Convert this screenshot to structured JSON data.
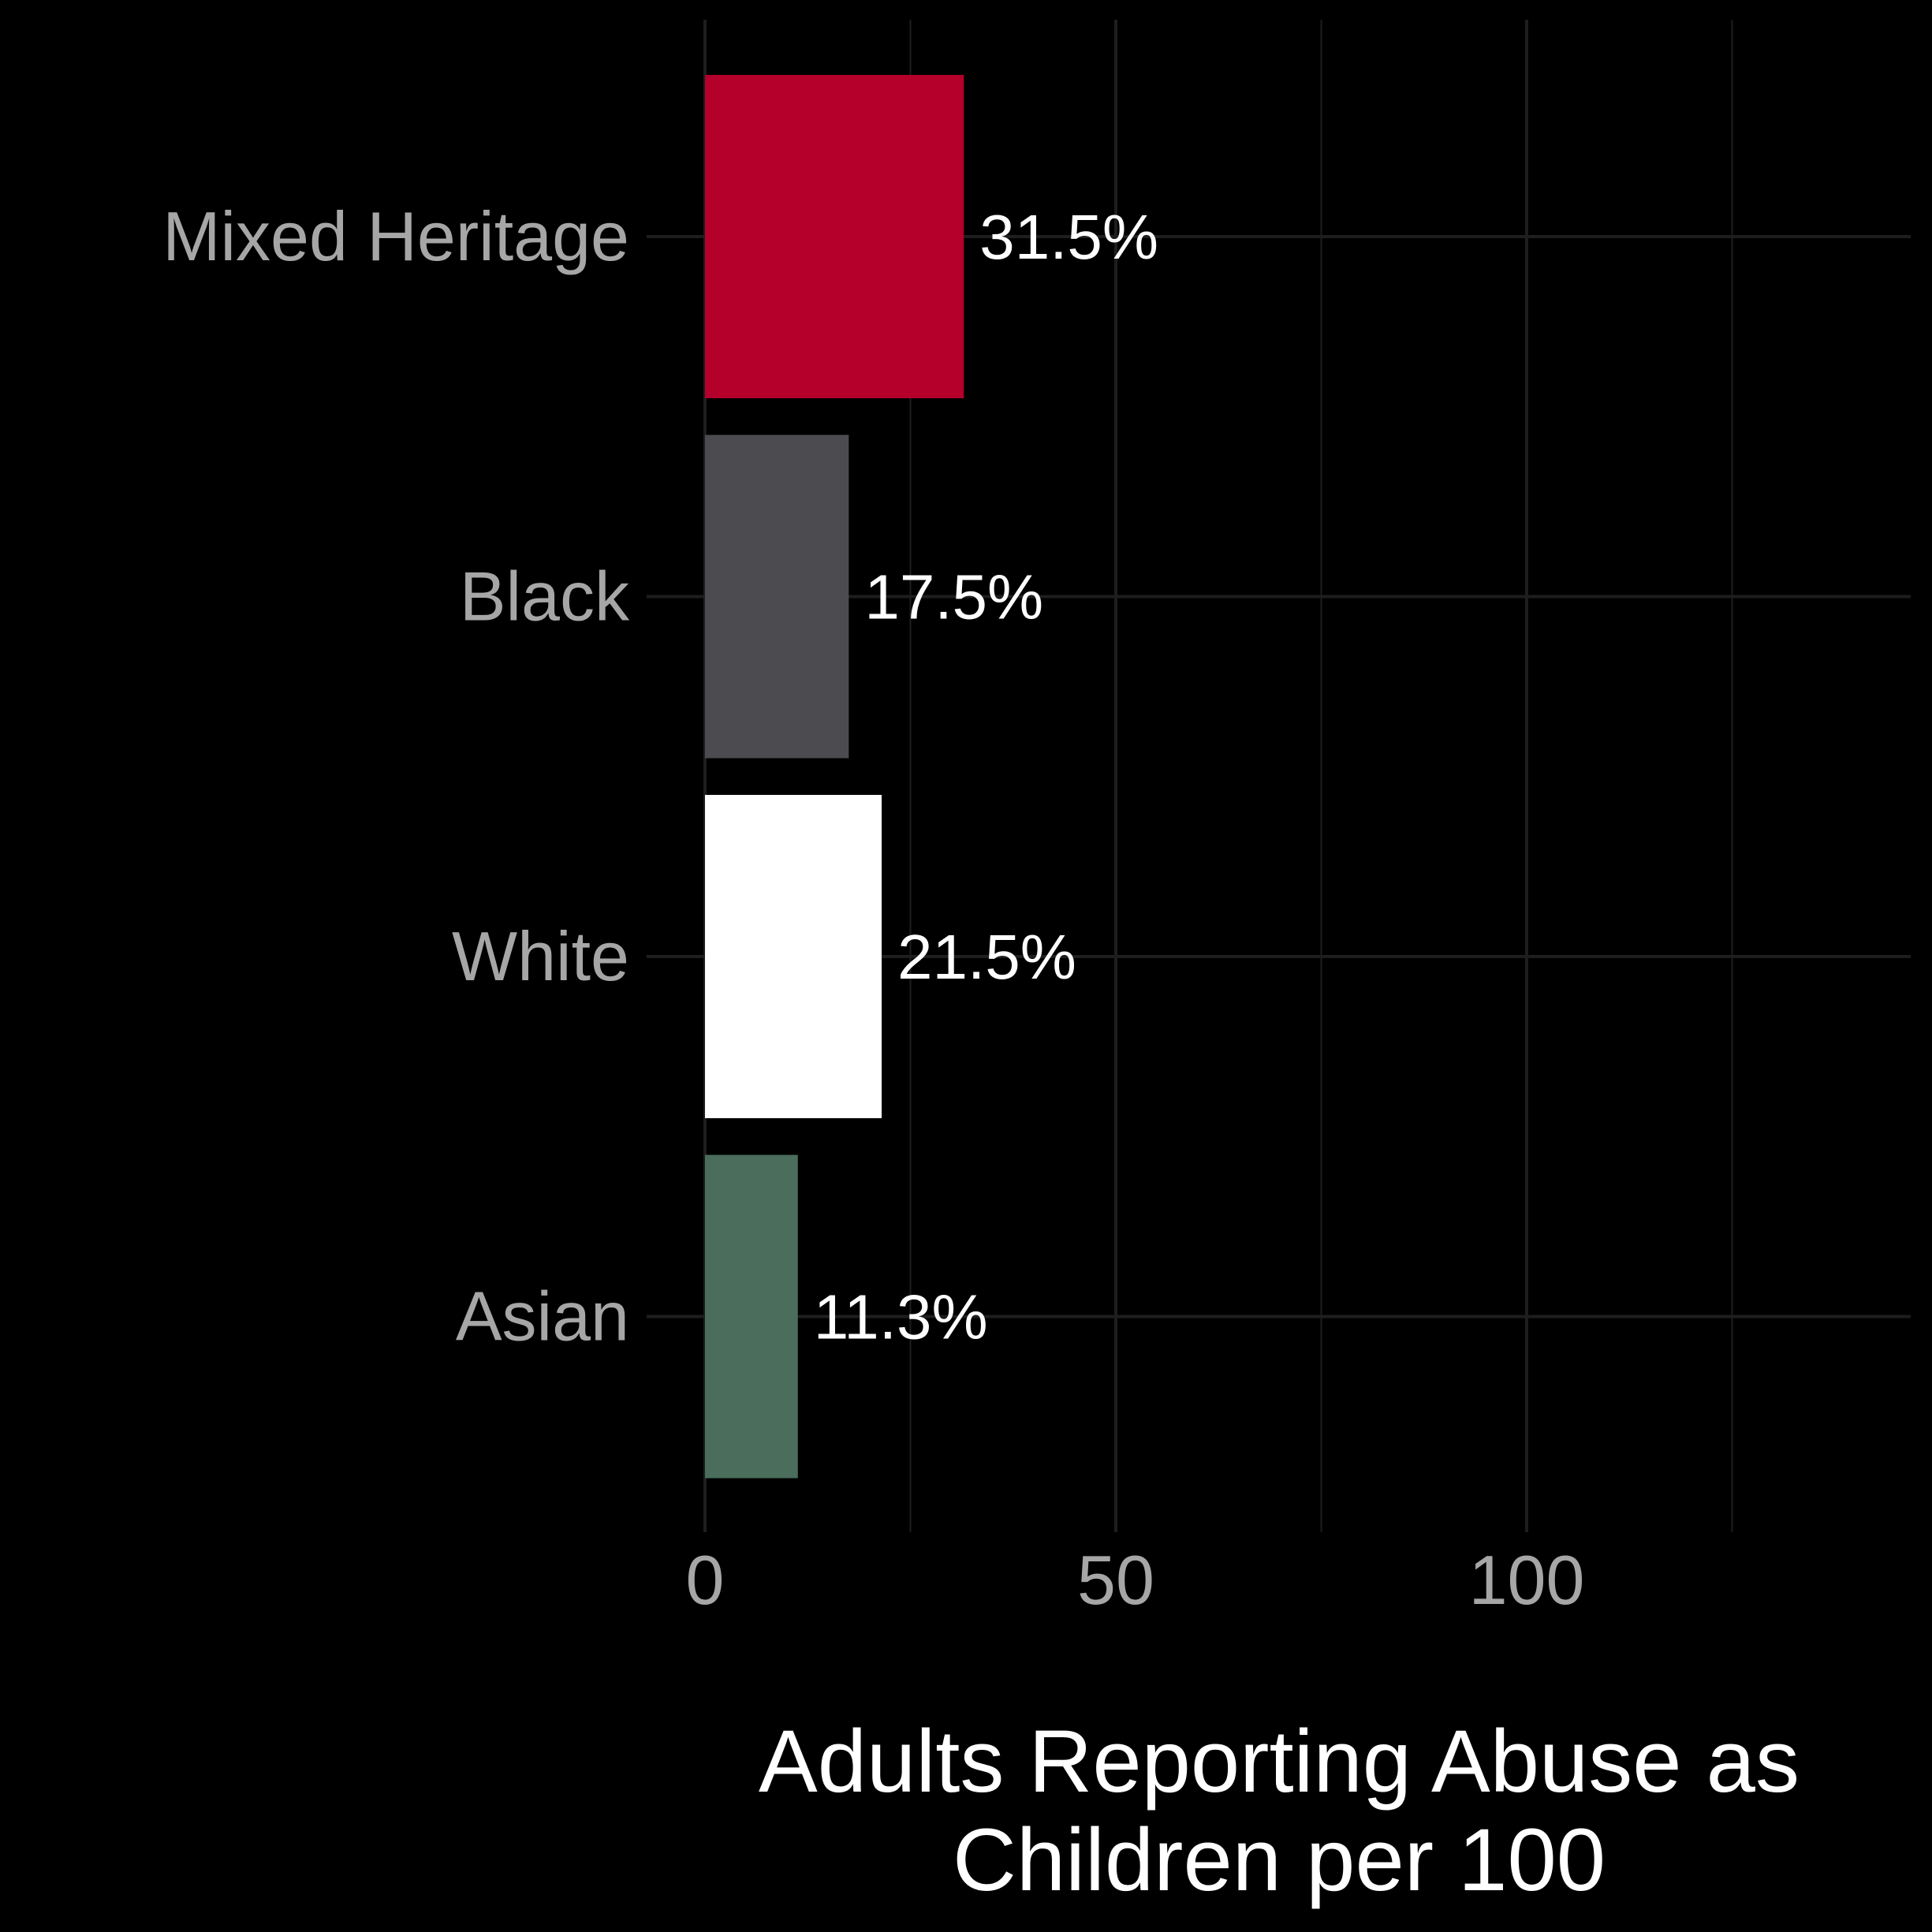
{
  "chart_data": {
    "type": "bar",
    "orientation": "horizontal",
    "categories": [
      "Mixed Heritage",
      "Black",
      "White",
      "Asian"
    ],
    "values": [
      31.5,
      17.5,
      21.5,
      11.3
    ],
    "value_labels": [
      "31.5%",
      "17.5%",
      "21.5%",
      "11.3%"
    ],
    "colors": [
      "#b5002c",
      "#4c4b50",
      "#ffffff",
      "#4a6d5c"
    ],
    "xlabel_lines": [
      "Adults Reporting Abuse as",
      "Children per 100"
    ],
    "xticks": [
      0,
      50,
      100
    ],
    "xtick_labels": [
      "0",
      "50",
      "100"
    ],
    "xlim": [
      0,
      147
    ],
    "grid": true,
    "legend": "none",
    "background": "#000000",
    "grid_color": "#1e1e1e"
  }
}
